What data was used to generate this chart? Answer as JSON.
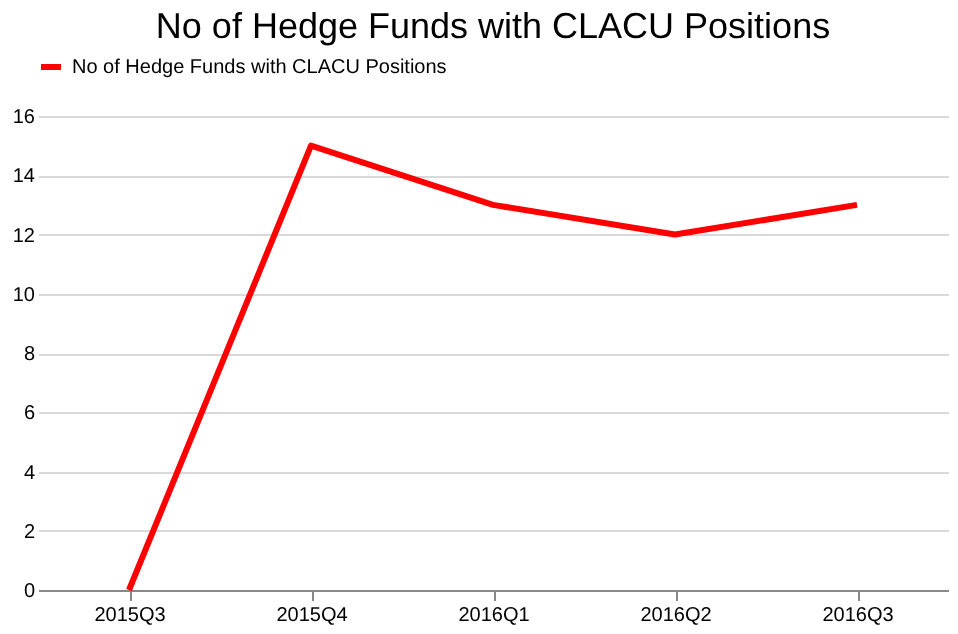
{
  "chart_data": {
    "type": "line",
    "title": "No of Hedge Funds with CLACU Positions",
    "categories": [
      "2015Q3",
      "2015Q4",
      "2016Q1",
      "2016Q2",
      "2016Q3"
    ],
    "series": [
      {
        "name": "No of Hedge Funds with CLACU Positions",
        "color": "#ff0000",
        "values": [
          0,
          15,
          13,
          12,
          13
        ]
      }
    ],
    "ylim": [
      0,
      16
    ],
    "yticks": [
      0,
      2,
      4,
      6,
      8,
      10,
      12,
      14,
      16
    ],
    "grid": "y",
    "legend": "top",
    "marker": "none",
    "line_style": "solid"
  }
}
